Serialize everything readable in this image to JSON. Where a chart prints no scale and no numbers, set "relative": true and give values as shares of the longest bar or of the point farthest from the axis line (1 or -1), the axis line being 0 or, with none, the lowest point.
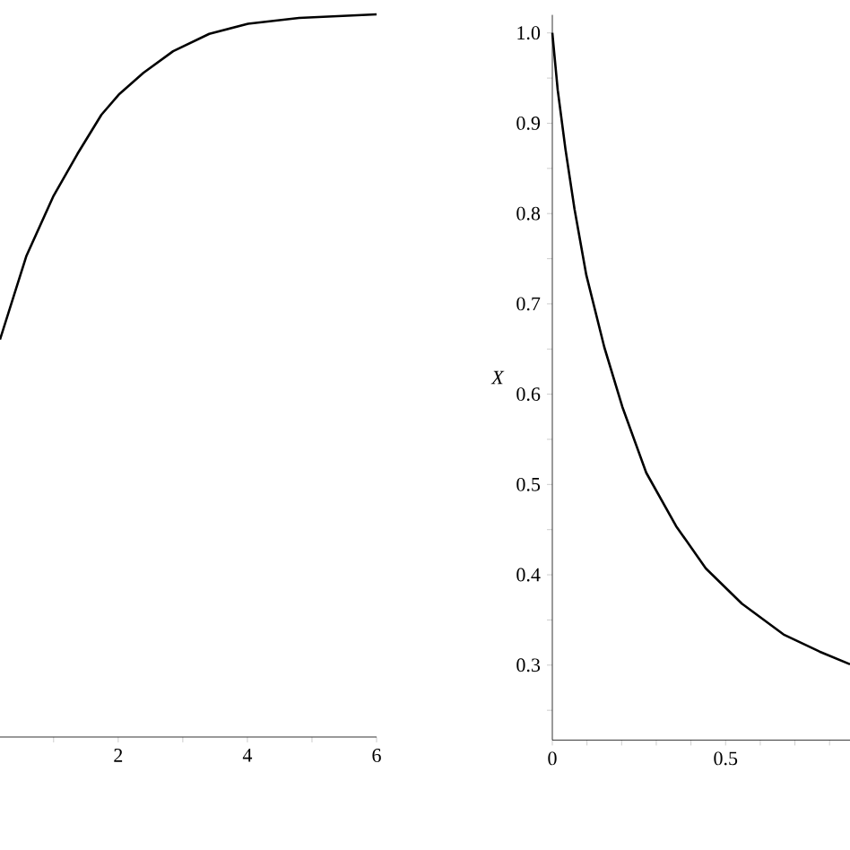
{
  "chart_data": [
    {
      "type": "line",
      "relative": true,
      "color": "#000000",
      "marker": "none",
      "line_style": "solid",
      "tick_labels": "x",
      "xlim": [
        0.17,
        6
      ],
      "xticks": [
        {
          "value": 1,
          "label": null
        },
        2,
        {
          "value": 3,
          "label": null
        },
        4,
        {
          "value": 5,
          "label": null
        },
        6
      ],
      "x": [
        0.17,
        0.58,
        1.0,
        1.37,
        1.74,
        2.02,
        2.39,
        2.85,
        3.41,
        4.01,
        4.8,
        6.0
      ],
      "values": [
        0.55,
        0.666,
        0.749,
        0.807,
        0.861,
        0.89,
        0.919,
        0.949,
        0.973,
        0.987,
        0.995,
        1.0
      ]
    },
    {
      "type": "line",
      "color": "#000000",
      "marker": "none",
      "line_style": "solid",
      "ylabel": "X",
      "xlim": [
        0,
        0.859
      ],
      "ylim": [
        0.217,
        1.02
      ],
      "xticks": [
        0,
        {
          "value": 0.1,
          "label": null
        },
        {
          "value": 0.2,
          "label": null
        },
        {
          "value": 0.3,
          "label": null
        },
        {
          "value": 0.4,
          "label": null
        },
        0.5,
        {
          "value": 0.6,
          "label": null
        },
        {
          "value": 0.7,
          "label": null
        },
        {
          "value": 0.8,
          "label": null
        }
      ],
      "yticks": [
        {
          "value": 0.25,
          "label": null
        },
        0.3,
        {
          "value": 0.35,
          "label": null
        },
        0.4,
        {
          "value": 0.45,
          "label": null
        },
        0.5,
        {
          "value": 0.55,
          "label": null
        },
        0.6,
        {
          "value": 0.65,
          "label": null
        },
        0.7,
        {
          "value": 0.75,
          "label": null
        },
        0.8,
        {
          "value": 0.85,
          "label": null
        },
        0.9,
        {
          "value": 0.95,
          "label": null
        },
        {
          "value": 1,
          "label": "1.0"
        }
      ],
      "x": [
        0,
        0.0155,
        0.038,
        0.064,
        0.098,
        0.15,
        0.202,
        0.271,
        0.357,
        0.443,
        0.547,
        0.667,
        0.771,
        0.859
      ],
      "values": [
        1.0,
        0.937,
        0.871,
        0.805,
        0.732,
        0.652,
        0.586,
        0.513,
        0.454,
        0.407,
        0.368,
        0.334,
        0.315,
        0.301
      ]
    }
  ]
}
